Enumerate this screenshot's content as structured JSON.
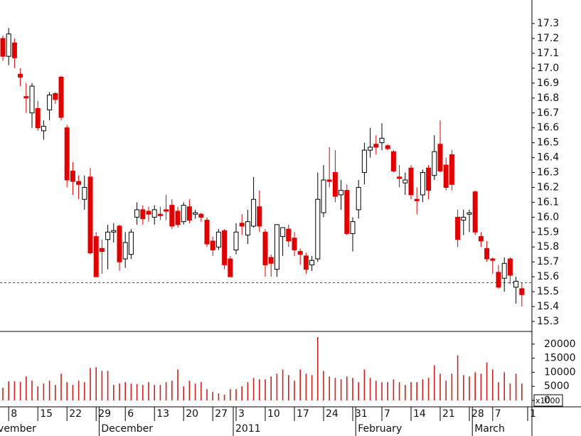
{
  "chart_data": {
    "type": "candlestick",
    "categories": [
      null,
      "8",
      null,
      null,
      null,
      null,
      "15",
      null,
      null,
      null,
      null,
      "22",
      null,
      null,
      null,
      null,
      "29",
      null,
      null,
      null,
      null,
      "6",
      null,
      null,
      null,
      null,
      "13",
      null,
      null,
      null,
      null,
      "20",
      null,
      null,
      null,
      null,
      "27",
      null,
      null,
      null,
      "3",
      null,
      null,
      null,
      null,
      "10",
      null,
      null,
      null,
      null,
      "17",
      null,
      null,
      null,
      null,
      "24",
      null,
      null,
      null,
      null,
      "31",
      null,
      null,
      null,
      null,
      "7",
      null,
      null,
      null,
      null,
      "14",
      null,
      null,
      null,
      null,
      "21",
      null,
      null,
      null,
      null,
      "28",
      null,
      null,
      null,
      "7",
      null,
      null,
      null,
      null,
      null,
      "1"
    ],
    "month_labels": [
      "November",
      null,
      null,
      null,
      null,
      null,
      null,
      null,
      null,
      null,
      null,
      null,
      null,
      null,
      null,
      null,
      null,
      "December",
      null,
      null,
      null,
      null,
      null,
      null,
      null,
      null,
      null,
      null,
      null,
      null,
      null,
      null,
      null,
      null,
      null,
      null,
      null,
      null,
      null,
      null,
      "2011",
      null,
      null,
      null,
      null,
      null,
      null,
      null,
      null,
      null,
      null,
      null,
      null,
      null,
      null,
      null,
      null,
      null,
      null,
      null,
      null,
      "February",
      null,
      null,
      null,
      null,
      null,
      null,
      null,
      null,
      null,
      null,
      null,
      null,
      null,
      null,
      null,
      null,
      null,
      null,
      null,
      "March",
      null,
      null,
      null,
      null,
      null,
      null,
      null,
      null,
      null,
      null
    ],
    "open": [
      17.2,
      17.08,
      17.17,
      16.96,
      16.81,
      16.7,
      16.73,
      16.58,
      16.72,
      16.83,
      16.94,
      16.6,
      16.31,
      16.24,
      16.12,
      16.27,
      15.87,
      15.79,
      15.85,
      15.9,
      15.94,
      15.72,
      15.75,
      16.0,
      16.05,
      16.04,
      16.0,
      16.02,
      16.05,
      16.08,
      16.04,
      15.97,
      16.07,
      16.02,
      16.02,
      15.98,
      15.84,
      15.8,
      15.91,
      15.72,
      15.78,
      15.96,
      15.88,
      15.94,
      16.07,
      15.9,
      15.73,
      15.65,
      15.87,
      15.92,
      15.86,
      15.77,
      15.74,
      15.68,
      15.72,
      16.03,
      16.25,
      16.3,
      16.15,
      16.18,
      15.89,
      16.05,
      16.3,
      16.45,
      16.49,
      16.5,
      16.48,
      16.44,
      16.27,
      16.23,
      16.33,
      16.12,
      16.15,
      16.33,
      16.28,
      16.49,
      16.35,
      16.42,
      16.0,
      15.98,
      16.02,
      16.17,
      15.87,
      15.79,
      15.72,
      15.63,
      15.59,
      15.72,
      15.53,
      15.52,
      null
    ],
    "high": [
      17.22,
      17.27,
      17.2,
      17.0,
      16.9,
      16.9,
      16.78,
      16.65,
      16.84,
      16.84,
      16.95,
      16.62,
      16.37,
      16.28,
      16.28,
      16.33,
      15.9,
      15.85,
      15.95,
      15.96,
      15.95,
      15.9,
      15.92,
      16.1,
      16.08,
      16.07,
      16.08,
      16.07,
      16.15,
      16.12,
      16.07,
      16.1,
      16.12,
      16.05,
      16.03,
      16.0,
      15.87,
      15.92,
      15.92,
      15.74,
      15.96,
      16.02,
      16.05,
      16.27,
      16.18,
      15.92,
      15.75,
      15.95,
      15.93,
      15.95,
      15.9,
      15.79,
      15.76,
      15.74,
      16.3,
      16.35,
      16.47,
      16.45,
      16.25,
      16.22,
      16.0,
      16.25,
      16.5,
      16.6,
      16.55,
      16.63,
      16.49,
      16.45,
      16.35,
      16.3,
      16.35,
      16.2,
      16.32,
      16.35,
      16.55,
      16.65,
      16.4,
      16.45,
      16.05,
      16.05,
      16.05,
      16.18,
      15.9,
      15.84,
      15.73,
      15.68,
      15.73,
      15.73,
      15.6,
      15.56,
      null
    ],
    "low": [
      17.05,
      17.02,
      17.0,
      16.88,
      16.7,
      16.6,
      16.58,
      16.52,
      16.65,
      16.76,
      16.65,
      16.2,
      16.15,
      16.12,
      16.05,
      15.75,
      15.6,
      15.62,
      15.65,
      15.83,
      15.64,
      15.66,
      15.72,
      15.95,
      15.95,
      15.97,
      15.95,
      15.98,
      15.98,
      15.92,
      15.93,
      15.95,
      15.96,
      15.99,
      15.97,
      15.8,
      15.74,
      15.78,
      15.65,
      15.6,
      15.75,
      15.88,
      15.82,
      15.93,
      15.9,
      15.6,
      15.6,
      15.6,
      15.74,
      15.8,
      15.74,
      15.68,
      15.62,
      15.64,
      15.7,
      16.0,
      16.2,
      16.1,
      16.05,
      15.88,
      15.77,
      15.99,
      16.22,
      16.4,
      16.42,
      16.45,
      16.45,
      16.3,
      16.2,
      16.15,
      16.12,
      16.02,
      16.1,
      16.12,
      16.25,
      16.3,
      16.18,
      16.18,
      15.8,
      15.88,
      15.9,
      15.88,
      15.8,
      15.7,
      15.62,
      15.52,
      15.5,
      15.55,
      15.42,
      15.4,
      null
    ],
    "close": [
      17.08,
      17.23,
      17.07,
      16.94,
      16.8,
      16.88,
      16.6,
      16.61,
      16.82,
      16.79,
      16.67,
      16.25,
      16.24,
      16.22,
      16.2,
      15.76,
      15.6,
      15.77,
      15.9,
      15.91,
      15.7,
      15.83,
      15.9,
      16.05,
      15.99,
      16.02,
      16.05,
      16.01,
      16.04,
      15.94,
      15.95,
      16.08,
      15.98,
      16.03,
      16.0,
      15.82,
      15.78,
      15.9,
      15.68,
      15.6,
      15.9,
      15.94,
      15.97,
      16.12,
      15.94,
      15.68,
      15.69,
      15.95,
      15.93,
      15.84,
      15.78,
      15.75,
      15.65,
      15.71,
      16.12,
      16.25,
      16.24,
      16.14,
      16.18,
      15.89,
      15.97,
      16.2,
      16.45,
      16.47,
      16.47,
      16.53,
      16.46,
      16.31,
      16.26,
      16.25,
      16.15,
      16.11,
      16.3,
      16.18,
      16.44,
      16.31,
      16.2,
      16.22,
      15.85,
      16.0,
      16.03,
      15.9,
      15.84,
      15.72,
      15.71,
      15.53,
      15.69,
      15.61,
      15.57,
      15.48,
      null
    ],
    "volume": [
      4500,
      6800,
      6800,
      6600,
      8500,
      7000,
      5000,
      6000,
      7000,
      5500,
      9500,
      6500,
      5500,
      7000,
      6500,
      11500,
      11800,
      10500,
      10500,
      5500,
      6000,
      6500,
      6000,
      5800,
      5500,
      6500,
      5500,
      5500,
      6500,
      7000,
      11000,
      5000,
      7000,
      6000,
      6500,
      4000,
      3000,
      2500,
      2000,
      4000,
      4000,
      5000,
      6500,
      8000,
      7500,
      7500,
      8500,
      9500,
      11000,
      9000,
      7000,
      11000,
      9500,
      9000,
      22500,
      10500,
      8500,
      8000,
      7500,
      8500,
      8000,
      6500,
      11000,
      8000,
      7000,
      6500,
      6500,
      7500,
      6500,
      5500,
      6500,
      6500,
      7500,
      8000,
      12500,
      9500,
      7000,
      9500,
      16000,
      9000,
      8500,
      10000,
      9500,
      13500,
      11000,
      6500,
      10000,
      6000,
      9500,
      6000,
      null
    ],
    "last_price": 15.56,
    "up_color": "#ffffff",
    "down_color": "#e00000",
    "volume_color": "#d02020",
    "ylim": [
      15.233,
      17.458
    ],
    "yticks": [
      15.3,
      15.4,
      15.5,
      15.6,
      15.7,
      15.8,
      15.9,
      {
        "value": 16,
        "label": "16.0"
      },
      16.1,
      16.2,
      16.3,
      16.4,
      16.5,
      16.6,
      16.7,
      16.8,
      16.9,
      {
        "value": 17,
        "label": "17.0"
      },
      17.1,
      17.2,
      17.3
    ],
    "volume_ylim": [
      0,
      24500
    ],
    "volume_ticks": [
      0,
      5000,
      10000,
      15000,
      20000
    ],
    "volume_unit": "x1000"
  }
}
